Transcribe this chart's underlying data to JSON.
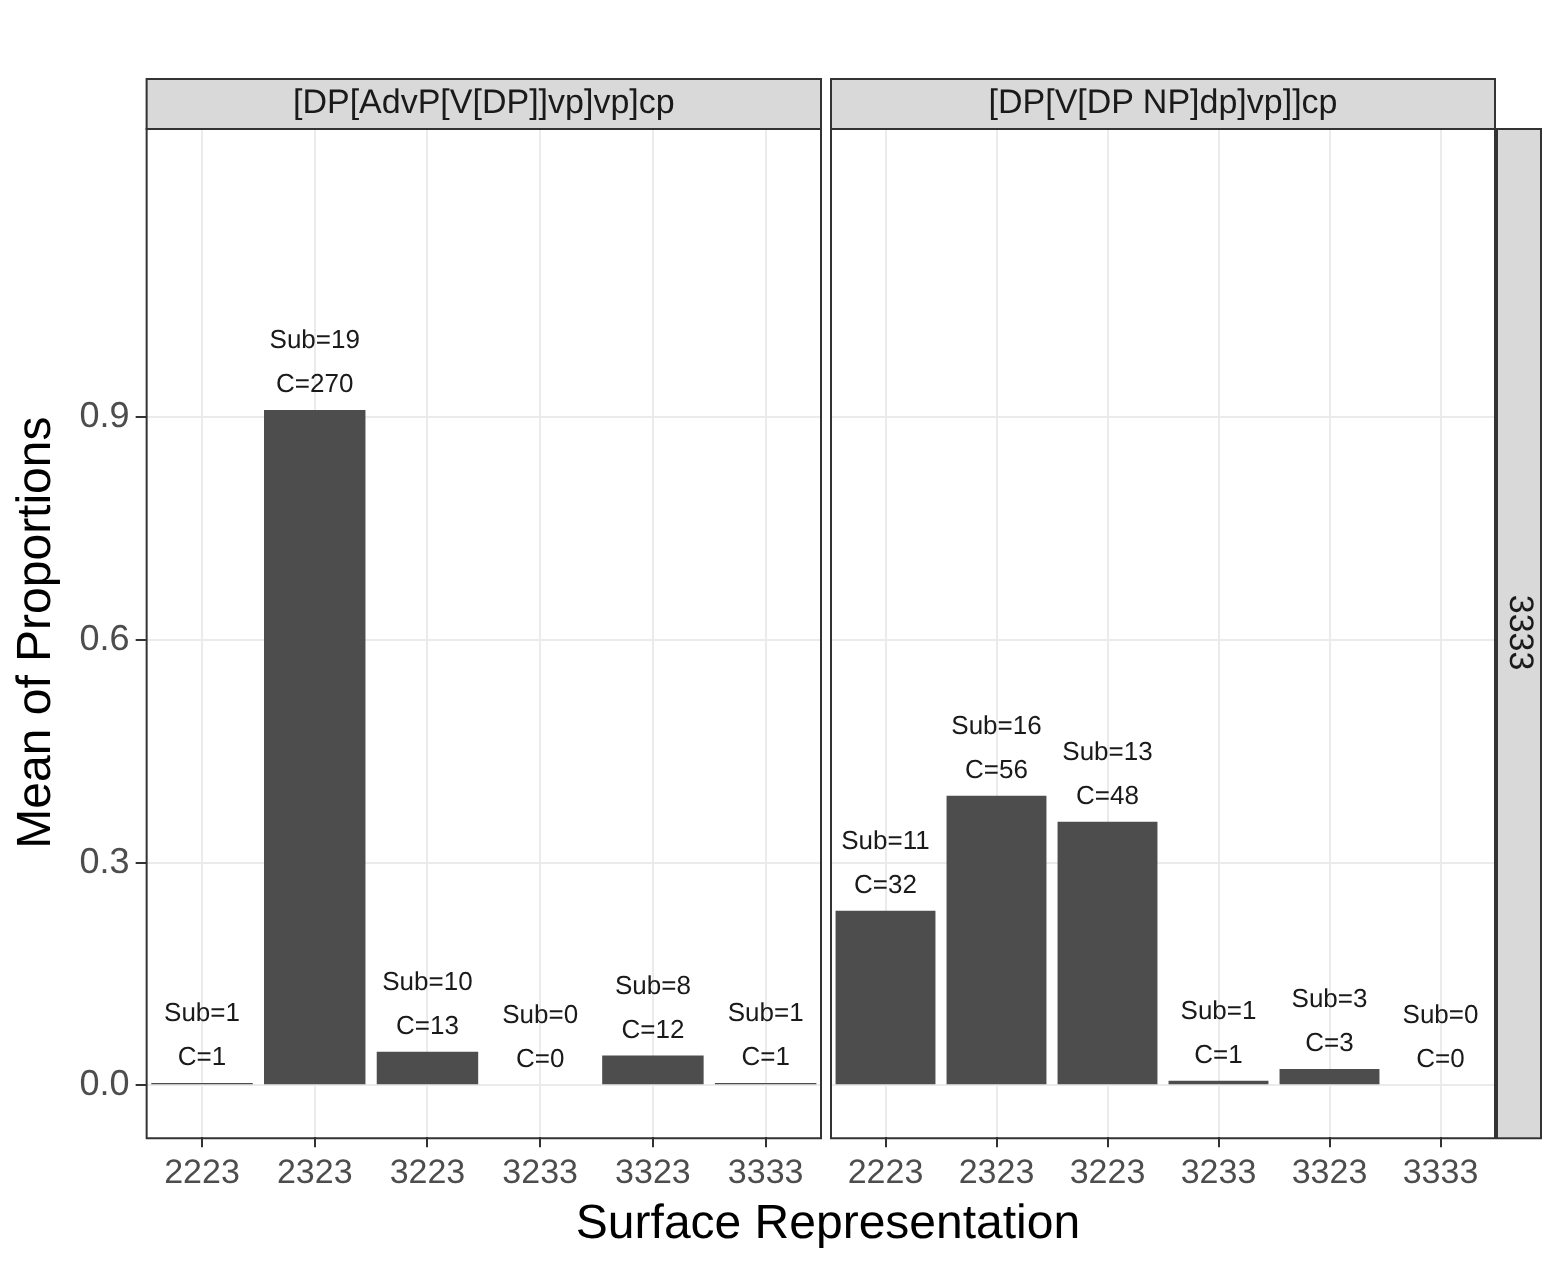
{
  "chart_data": [
    {
      "type": "bar",
      "title": "[DP[AdvP[V[DP]]vp]vp]cp",
      "xlabel": "Surface Representation",
      "ylabel": "Mean of Proportions",
      "categories": [
        "2223",
        "2323",
        "3223",
        "3233",
        "3323",
        "3333"
      ],
      "series": [
        {
          "color": "#4d4d4d",
          "values": [
            0.003,
            0.91,
            0.045,
            0,
            0.04,
            0.003
          ],
          "value_labels": [
            "Sub=1\nC=1",
            "Sub=19\nC=270",
            "Sub=10\nC=13",
            "Sub=0\nC=0",
            "Sub=8\nC=12",
            "Sub=1\nC=1"
          ]
        }
      ],
      "ylim": [
        -0.07,
        1.29
      ],
      "yticks": [
        {
          "value": 0,
          "label": "0.0"
        },
        0.3,
        0.6,
        0.9
      ],
      "grid": true,
      "legend": false
    },
    {
      "type": "bar",
      "title": "[DP[V[DP NP]dp]vp]]cp",
      "annotations": [
        "3333"
      ],
      "categories": [
        "2223",
        "2323",
        "3223",
        "3233",
        "3323",
        "3333"
      ],
      "series": [
        {
          "color": "#4d4d4d",
          "values": [
            0.235,
            0.39,
            0.355,
            0.006,
            0.022,
            0
          ],
          "value_labels": [
            "Sub=11\nC=32",
            "Sub=16\nC=56",
            "Sub=13\nC=48",
            "Sub=1\nC=1",
            "Sub=3\nC=3",
            "Sub=0\nC=0"
          ]
        }
      ],
      "ylim": [
        -0.07,
        1.29
      ],
      "yticks": [
        0,
        0.3,
        0.6,
        0.9
      ],
      "grid": true,
      "legend": false,
      "tick_labels": "x"
    }
  ]
}
